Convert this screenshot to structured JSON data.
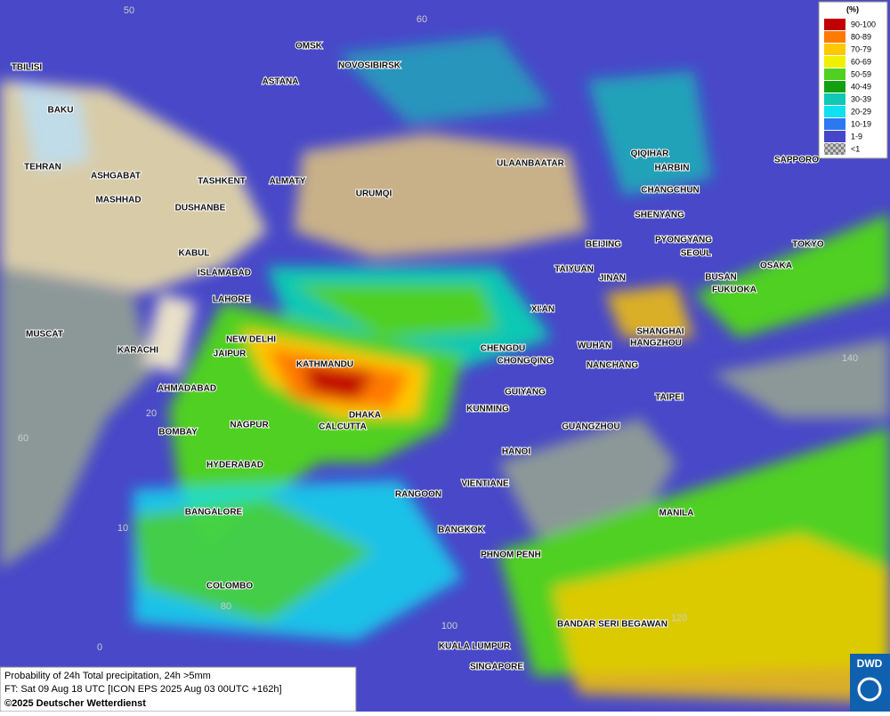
{
  "legend": {
    "title": "(%)",
    "items": [
      {
        "label": "90-100",
        "color": "#c00000"
      },
      {
        "label": "80-89",
        "color": "#ff7a00"
      },
      {
        "label": "70-79",
        "color": "#ffc800"
      },
      {
        "label": "60-69",
        "color": "#f0f000"
      },
      {
        "label": "50-59",
        "color": "#50d020"
      },
      {
        "label": "40-49",
        "color": "#10a010"
      },
      {
        "label": "30-39",
        "color": "#10c8b4"
      },
      {
        "label": "20-29",
        "color": "#10e0f0"
      },
      {
        "label": "10-19",
        "color": "#2c78f0"
      },
      {
        "label": "1-9",
        "color": "#4646c8"
      },
      {
        "label": "<1",
        "color": "#a0a0a0"
      }
    ]
  },
  "cities": [
    "TBILISI",
    "OMSK",
    "NOVOSIBIRSK",
    "ASTANA",
    "BAKU",
    "TEHRAN",
    "ASHGABAT",
    "MASHHAD",
    "TASHKENT",
    "ALMATY",
    "URUMQI",
    "ULAANBAATAR",
    "QIQIHAR",
    "HARBIN",
    "CHANGCHUN",
    "SHENYANG",
    "SAPPORO",
    "BEIJING",
    "PYONGYANG",
    "SEOUL",
    "TOKYO",
    "OSAKA",
    "BUSAN",
    "FUKUOKA",
    "DUSHANBE",
    "KABUL",
    "ISLAMABAD",
    "LAHORE",
    "TAIYUAN",
    "JINAN",
    "XI'AN",
    "SHANGHAI",
    "HANGZHOU",
    "NEW DELHI",
    "JAIPUR",
    "MUSCAT",
    "KARACHI",
    "KATHMANDU",
    "CHENGDU",
    "CHONGQING",
    "WUHAN",
    "NANCHANG",
    "AHMADABAD",
    "GUIYANG",
    "TAIPEI",
    "DHAKA",
    "KUNMING",
    "CALCUTTA",
    "NAGPUR",
    "BOMBAY",
    "GUANGZHOU",
    "HANOI",
    "HYDERABAD",
    "RANGOON",
    "VIENTIANE",
    "MANILA",
    "BANGALORE",
    "BANGKOK",
    "PHNOM PENH",
    "COLOMBO",
    "BANDAR SERI BEGAWAN",
    "KUALA LUMPUR",
    "SINGAPORE"
  ],
  "grid_labels": [
    "50",
    "60",
    "20",
    "60",
    "10",
    "80",
    "0",
    "100",
    "120",
    "140"
  ],
  "footer": {
    "line1": "Probability of 24h Total precipitation, 24h >5mm",
    "line2": "FT: Sat 09 Aug 18 UTC [ICON EPS 2025 Aug 03 00UTC +162h]",
    "line3": "©2025 Deutscher Wetterdienst"
  },
  "logo": "DWD"
}
